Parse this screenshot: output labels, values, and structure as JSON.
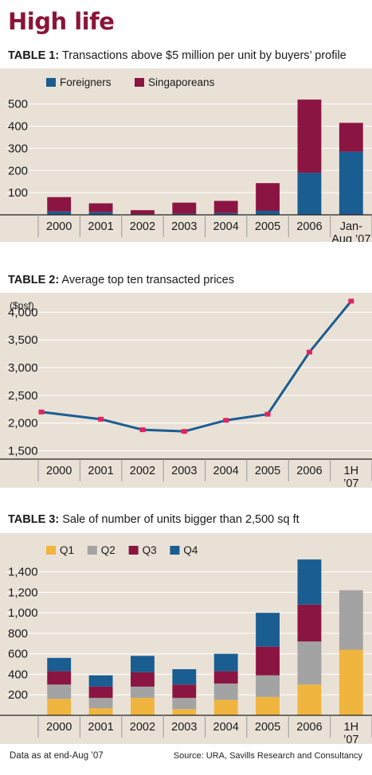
{
  "title": "High life",
  "colors": {
    "accent": "#8a1538",
    "foreigners": "#1a5d91",
    "singaporeans": "#8b1542",
    "line": "#1a5d91",
    "marker": "#e0245e",
    "q1": "#f0b53f",
    "q2": "#a3a3a3",
    "q3": "#8b1542",
    "q4": "#1a5d91",
    "panel": "#e9e1d6"
  },
  "footer": {
    "note": "Data as at end-Aug ’07",
    "source": "Source: URA, Savills Research and Consultancy"
  },
  "chart_data": [
    {
      "type": "bar",
      "stacked": true,
      "label": "TABLE 1:",
      "title": "Transactions above $5 million per unit by buyers’ profile",
      "categories": [
        "2000",
        "2001",
        "2002",
        "2003",
        "2004",
        "2005",
        "2006",
        [
          "Jan-",
          "Aug ’07"
        ]
      ],
      "series": [
        {
          "name": "Foreigners",
          "values": [
            15,
            12,
            3,
            5,
            8,
            18,
            190,
            285
          ]
        },
        {
          "name": "Singaporeans",
          "values": [
            65,
            40,
            18,
            50,
            55,
            125,
            330,
            130
          ]
        }
      ],
      "yticks": [
        100,
        200,
        300,
        400,
        500
      ],
      "ylim": [
        0,
        560
      ],
      "legend": "top-left"
    },
    {
      "type": "line",
      "label": "TABLE 2:",
      "title": "Average top ten transacted prices",
      "unit": "($psf)",
      "categories": [
        "2000",
        "2001",
        "2002",
        "2003",
        "2004",
        "2005",
        "2006",
        [
          "1H",
          "’07"
        ]
      ],
      "values": [
        2200,
        2070,
        1880,
        1850,
        2050,
        2160,
        3280,
        4200
      ],
      "yticks": [
        "1,500",
        "2,000",
        "2,500",
        "3,000",
        "3,500",
        "4,000"
      ],
      "ylim": [
        1350,
        4350
      ]
    },
    {
      "type": "bar",
      "stacked": true,
      "label": "TABLE 3:",
      "title": "Sale of number of units bigger than 2,500 sq ft",
      "categories": [
        "2000",
        "2001",
        "2002",
        "2003",
        "2004",
        "2005",
        "2006",
        [
          "1H",
          "’07"
        ]
      ],
      "series": [
        {
          "name": "Q1",
          "values": [
            160,
            70,
            170,
            60,
            150,
            180,
            300,
            640
          ]
        },
        {
          "name": "Q2",
          "values": [
            140,
            100,
            110,
            110,
            160,
            210,
            420,
            580
          ]
        },
        {
          "name": "Q3",
          "values": [
            130,
            110,
            140,
            130,
            120,
            280,
            360,
            0
          ]
        },
        {
          "name": "Q4",
          "values": [
            130,
            110,
            160,
            150,
            170,
            330,
            440,
            0
          ]
        }
      ],
      "yticks": [
        "200",
        "400",
        "600",
        "800",
        "1,000",
        "1,200",
        "1,400"
      ],
      "ylim": [
        0,
        1560
      ],
      "legend": "top-left"
    }
  ]
}
